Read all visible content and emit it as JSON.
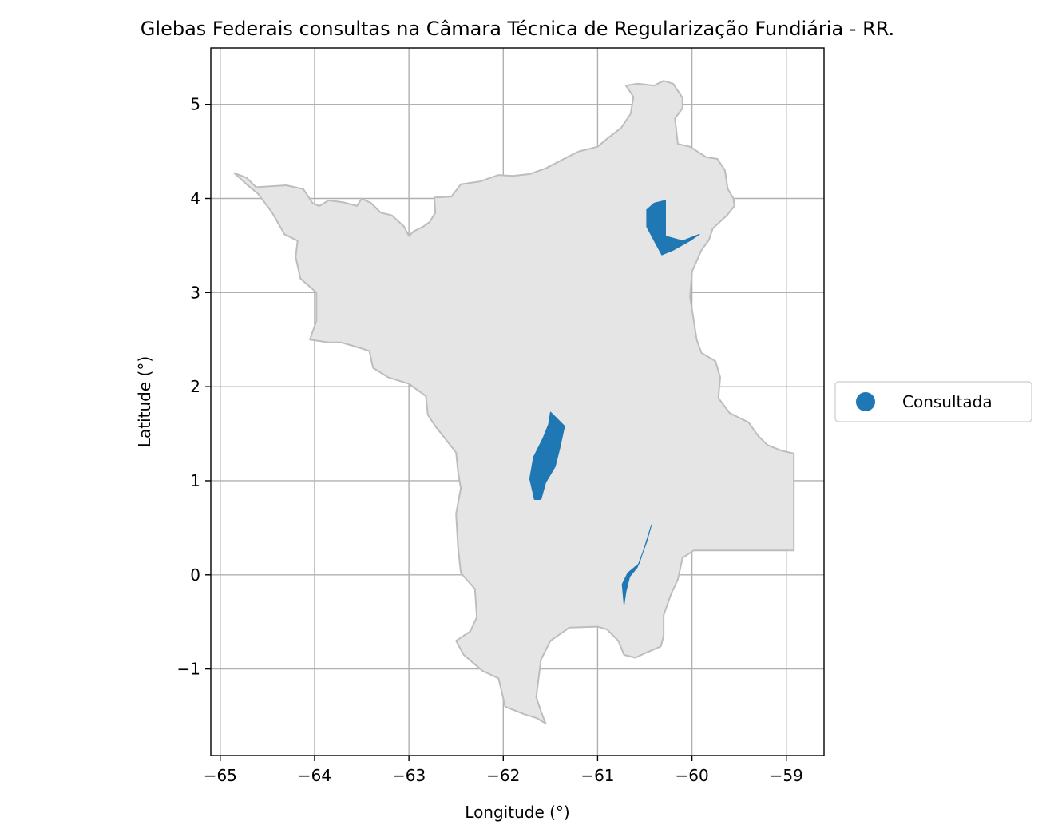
{
  "map": {
    "title": "Glebas Federais consultas na Câmara Técnica de Regularização Fundiária - RR.",
    "xlabel": "Longitude (°)",
    "ylabel": "Latitude (°)",
    "xlim": [
      -65.1,
      -58.6
    ],
    "ylim": [
      -1.92,
      5.6
    ],
    "x_ticks": [
      {
        "value": -65,
        "label": "−65"
      },
      {
        "value": -64,
        "label": "−64"
      },
      {
        "value": -63,
        "label": "−63"
      },
      {
        "value": -62,
        "label": "−62"
      },
      {
        "value": -61,
        "label": "−61"
      },
      {
        "value": -60,
        "label": "−60"
      },
      {
        "value": -59,
        "label": "−59"
      }
    ],
    "y_ticks": [
      {
        "value": 5,
        "label": "5"
      },
      {
        "value": 4,
        "label": "4"
      },
      {
        "value": 3,
        "label": "3"
      },
      {
        "value": 2,
        "label": "2"
      },
      {
        "value": 1,
        "label": "1"
      },
      {
        "value": 0,
        "label": "0"
      },
      {
        "value": -1,
        "label": "−1"
      }
    ],
    "grid": true,
    "state_fill": "#e5e5e5",
    "state_edge": "#bdbdbd",
    "legend": {
      "placement": "right",
      "entries": [
        {
          "label": "Consultada",
          "color": "#1f77b4"
        }
      ]
    },
    "state_outline": [
      [
        -64.85,
        4.27
      ],
      [
        -64.72,
        4.22
      ],
      [
        -64.62,
        4.12
      ],
      [
        -64.3,
        4.14
      ],
      [
        -64.12,
        4.1
      ],
      [
        -64.02,
        3.95
      ],
      [
        -63.95,
        3.92
      ],
      [
        -63.85,
        3.98
      ],
      [
        -63.7,
        3.96
      ],
      [
        -63.55,
        3.92
      ],
      [
        -63.5,
        4.0
      ],
      [
        -63.4,
        3.95
      ],
      [
        -63.3,
        3.85
      ],
      [
        -63.18,
        3.82
      ],
      [
        -63.05,
        3.7
      ],
      [
        -63.0,
        3.6
      ],
      [
        -62.95,
        3.65
      ],
      [
        -62.85,
        3.7
      ],
      [
        -62.78,
        3.75
      ],
      [
        -62.72,
        3.85
      ],
      [
        -62.73,
        4.01
      ],
      [
        -62.55,
        4.02
      ],
      [
        -62.45,
        4.15
      ],
      [
        -62.25,
        4.18
      ],
      [
        -62.05,
        4.25
      ],
      [
        -61.9,
        4.24
      ],
      [
        -61.72,
        4.26
      ],
      [
        -61.55,
        4.32
      ],
      [
        -61.3,
        4.45
      ],
      [
        -61.2,
        4.5
      ],
      [
        -61.0,
        4.55
      ],
      [
        -60.88,
        4.65
      ],
      [
        -60.75,
        4.75
      ],
      [
        -60.65,
        4.9
      ],
      [
        -60.62,
        5.08
      ],
      [
        -60.7,
        5.2
      ],
      [
        -60.58,
        5.22
      ],
      [
        -60.4,
        5.2
      ],
      [
        -60.3,
        5.25
      ],
      [
        -60.2,
        5.22
      ],
      [
        -60.1,
        5.07
      ],
      [
        -60.1,
        4.96
      ],
      [
        -60.18,
        4.85
      ],
      [
        -60.15,
        4.58
      ],
      [
        -60.02,
        4.55
      ],
      [
        -59.85,
        4.44
      ],
      [
        -59.73,
        4.42
      ],
      [
        -59.65,
        4.3
      ],
      [
        -59.62,
        4.1
      ],
      [
        -59.56,
        4.0
      ],
      [
        -59.55,
        3.92
      ],
      [
        -59.63,
        3.82
      ],
      [
        -59.78,
        3.68
      ],
      [
        -59.82,
        3.56
      ],
      [
        -59.9,
        3.45
      ],
      [
        -60.0,
        3.22
      ],
      [
        -60.02,
        2.95
      ],
      [
        -59.98,
        2.7
      ],
      [
        -59.95,
        2.5
      ],
      [
        -59.9,
        2.36
      ],
      [
        -59.75,
        2.27
      ],
      [
        -59.7,
        2.1
      ],
      [
        -59.72,
        1.88
      ],
      [
        -59.6,
        1.72
      ],
      [
        -59.4,
        1.62
      ],
      [
        -59.3,
        1.48
      ],
      [
        -59.2,
        1.38
      ],
      [
        -59.05,
        1.32
      ],
      [
        -58.92,
        1.29
      ],
      [
        -58.92,
        0.26
      ],
      [
        -59.98,
        0.26
      ],
      [
        -60.1,
        0.18
      ],
      [
        -60.15,
        -0.05
      ],
      [
        -60.22,
        -0.2
      ],
      [
        -60.3,
        -0.43
      ],
      [
        -60.3,
        -0.65
      ],
      [
        -60.33,
        -0.76
      ],
      [
        -60.47,
        -0.82
      ],
      [
        -60.6,
        -0.88
      ],
      [
        -60.72,
        -0.85
      ],
      [
        -60.78,
        -0.7
      ],
      [
        -60.9,
        -0.58
      ],
      [
        -61.0,
        -0.55
      ],
      [
        -61.3,
        -0.56
      ],
      [
        -61.5,
        -0.7
      ],
      [
        -61.6,
        -0.9
      ],
      [
        -61.65,
        -1.3
      ],
      [
        -61.6,
        -1.45
      ],
      [
        -61.55,
        -1.58
      ],
      [
        -61.65,
        -1.52
      ],
      [
        -61.78,
        -1.48
      ],
      [
        -61.98,
        -1.4
      ],
      [
        -62.05,
        -1.1
      ],
      [
        -62.22,
        -1.02
      ],
      [
        -62.42,
        -0.85
      ],
      [
        -62.5,
        -0.7
      ],
      [
        -62.35,
        -0.6
      ],
      [
        -62.28,
        -0.45
      ],
      [
        -62.3,
        -0.15
      ],
      [
        -62.45,
        0.02
      ],
      [
        -62.48,
        0.3
      ],
      [
        -62.5,
        0.65
      ],
      [
        -62.45,
        0.92
      ],
      [
        -62.48,
        1.1
      ],
      [
        -62.5,
        1.3
      ],
      [
        -62.72,
        1.58
      ],
      [
        -62.8,
        1.7
      ],
      [
        -62.82,
        1.9
      ],
      [
        -63.0,
        2.03
      ],
      [
        -63.22,
        2.1
      ],
      [
        -63.38,
        2.2
      ],
      [
        -63.42,
        2.38
      ],
      [
        -63.58,
        2.43
      ],
      [
        -63.72,
        2.47
      ],
      [
        -63.85,
        2.47
      ],
      [
        -64.05,
        2.5
      ],
      [
        -63.98,
        2.7
      ],
      [
        -63.98,
        3.0
      ],
      [
        -64.15,
        3.15
      ],
      [
        -64.2,
        3.38
      ],
      [
        -64.18,
        3.55
      ],
      [
        -64.32,
        3.62
      ],
      [
        -64.45,
        3.85
      ],
      [
        -64.6,
        4.05
      ],
      [
        -64.72,
        4.15
      ],
      [
        -64.85,
        4.27
      ]
    ],
    "glebas": [
      {
        "status": "Consultada",
        "polygon": [
          [
            -60.28,
            3.98
          ],
          [
            -60.28,
            3.6
          ],
          [
            -60.1,
            3.55
          ],
          [
            -59.92,
            3.62
          ],
          [
            -60.02,
            3.55
          ],
          [
            -60.2,
            3.45
          ],
          [
            -60.32,
            3.4
          ],
          [
            -60.4,
            3.55
          ],
          [
            -60.48,
            3.7
          ],
          [
            -60.48,
            3.88
          ],
          [
            -60.4,
            3.95
          ],
          [
            -60.28,
            3.98
          ]
        ]
      },
      {
        "status": "Consultada",
        "polygon": [
          [
            -61.5,
            1.73
          ],
          [
            -61.35,
            1.58
          ],
          [
            -61.4,
            1.35
          ],
          [
            -61.45,
            1.15
          ],
          [
            -61.55,
            0.98
          ],
          [
            -61.6,
            0.8
          ],
          [
            -61.67,
            0.8
          ],
          [
            -61.72,
            1.02
          ],
          [
            -61.68,
            1.25
          ],
          [
            -61.58,
            1.45
          ],
          [
            -61.52,
            1.6
          ],
          [
            -61.5,
            1.73
          ]
        ]
      },
      {
        "status": "Consultada",
        "polygon": [
          [
            -60.43,
            0.53
          ],
          [
            -60.48,
            0.35
          ],
          [
            -60.58,
            0.08
          ],
          [
            -60.66,
            -0.02
          ],
          [
            -60.7,
            -0.18
          ],
          [
            -60.72,
            -0.32
          ],
          [
            -60.74,
            -0.1
          ],
          [
            -60.68,
            0.02
          ],
          [
            -60.56,
            0.12
          ],
          [
            -60.5,
            0.3
          ],
          [
            -60.43,
            0.53
          ]
        ]
      }
    ]
  }
}
